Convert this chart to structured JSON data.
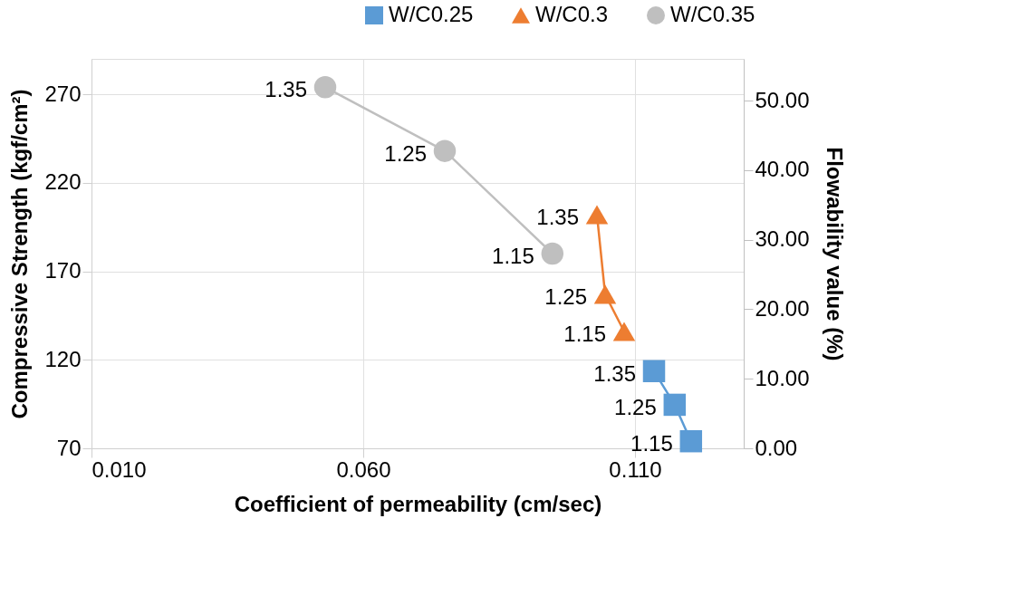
{
  "chart_data": {
    "type": "line",
    "xlabel": "Coefficient of permeability (cm/sec)",
    "ylabel": "Compressive Strength (kgf/cm²)",
    "y2label": "Flowability value (%)",
    "xlim": [
      0.01,
      0.13
    ],
    "xticks": [
      {
        "value": 0.01,
        "label": "0.010"
      },
      {
        "value": 0.06,
        "label": "0.060"
      },
      {
        "value": 0.11,
        "label": "0.110"
      }
    ],
    "ylim": [
      70,
      290
    ],
    "yticks": [
      70,
      120,
      170,
      220,
      270
    ],
    "y2lim": [
      0,
      56
    ],
    "y2ticks": [
      {
        "value": 0,
        "label": "0.00"
      },
      {
        "value": 10,
        "label": "10.00"
      },
      {
        "value": 20,
        "label": "20.00"
      },
      {
        "value": 30,
        "label": "30.00"
      },
      {
        "value": 40,
        "label": "40.00"
      },
      {
        "value": 50,
        "label": "50.00"
      }
    ],
    "grid": true,
    "legend": "top right",
    "series": [
      {
        "name": "W/C0.25",
        "color": "#5b9bd5",
        "marker": "square",
        "x": [
          0.1135,
          0.1173,
          0.1203
        ],
        "values": [
          113.6,
          94.6,
          74
        ]
      },
      {
        "name": "W/C0.3",
        "color": "#ed7d31",
        "marker": "triangle",
        "x": [
          0.103,
          0.1045,
          0.108
        ],
        "values": [
          202,
          157,
          136
        ]
      },
      {
        "name": "W/C0.35",
        "color": "#bfbfbf",
        "marker": "circle",
        "x": [
          0.053,
          0.075,
          0.0948
        ],
        "values": [
          274,
          238,
          180
        ]
      }
    ],
    "annotations": [
      {
        "text": "1.35",
        "x": 0.1135,
        "y": 113.6
      },
      {
        "text": "1.25",
        "x": 0.1173,
        "y": 94.6
      },
      {
        "text": "1.15",
        "x": 0.1203,
        "y": 74
      },
      {
        "text": "1.35",
        "x": 0.103,
        "y": 202
      },
      {
        "text": "1.25",
        "x": 0.1045,
        "y": 157
      },
      {
        "text": "1.15",
        "x": 0.108,
        "y": 136
      },
      {
        "text": "1.35",
        "x": 0.053,
        "y": 274
      },
      {
        "text": "1.25",
        "x": 0.075,
        "y": 238
      },
      {
        "text": "1.15",
        "x": 0.0948,
        "y": 180
      }
    ]
  }
}
